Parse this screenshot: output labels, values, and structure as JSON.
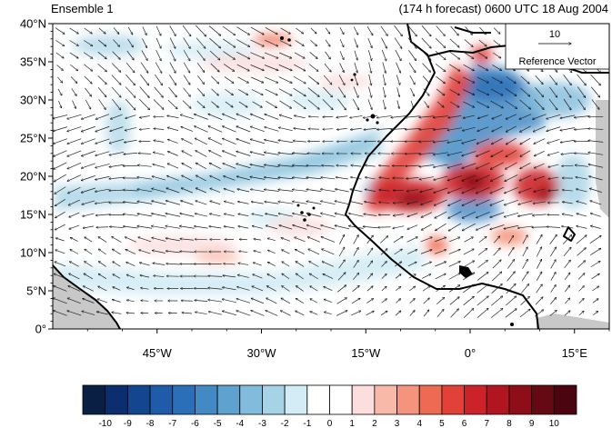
{
  "header": {
    "left_title": "Ensemble 1",
    "right_title": "(174 h forecast) 0600 UTC 18 Aug 2004"
  },
  "map": {
    "lon_range": [
      -60,
      20
    ],
    "lat_range": [
      0,
      40
    ],
    "lat_ticks": [
      {
        "value": 40,
        "label": "40°N"
      },
      {
        "value": 35,
        "label": "35°N"
      },
      {
        "value": 30,
        "label": "30°N"
      },
      {
        "value": 25,
        "label": "25°N"
      },
      {
        "value": 20,
        "label": "20°N"
      },
      {
        "value": 15,
        "label": "15°N"
      },
      {
        "value": 10,
        "label": "10°N"
      },
      {
        "value": 5,
        "label": "5°N"
      },
      {
        "value": 0,
        "label": "0°"
      }
    ],
    "lon_ticks": [
      {
        "value": -45,
        "label": "45°W"
      },
      {
        "value": -30,
        "label": "30°W"
      },
      {
        "value": -15,
        "label": "15°W"
      },
      {
        "value": 0,
        "label": "0°"
      },
      {
        "value": 15,
        "label": "15°E"
      }
    ],
    "reference_vector": {
      "value": "10",
      "label": "Reference Vector"
    },
    "colors": {
      "land_mask": "#c8c8c8",
      "coast": "#000000"
    }
  },
  "colorbar": {
    "levels": [
      "-10",
      "-9",
      "-8",
      "-7",
      "-6",
      "-5",
      "-4",
      "-3",
      "-2",
      "-1",
      "0",
      "1",
      "2",
      "3",
      "4",
      "5",
      "6",
      "7",
      "8",
      "9",
      "10"
    ],
    "colors": [
      "#0a1f44",
      "#0d2e6e",
      "#14458f",
      "#1f5ba8",
      "#2b6fb8",
      "#4389c4",
      "#5fa2cf",
      "#82bcdc",
      "#a6d3e6",
      "#d3ecf5",
      "#ffffff",
      "#ffffff",
      "#fcdede",
      "#f8b9a8",
      "#f5947c",
      "#ef6a52",
      "#e2413a",
      "#cc2229",
      "#b11620",
      "#8d0d18",
      "#650a12",
      "#4a0510"
    ]
  }
}
